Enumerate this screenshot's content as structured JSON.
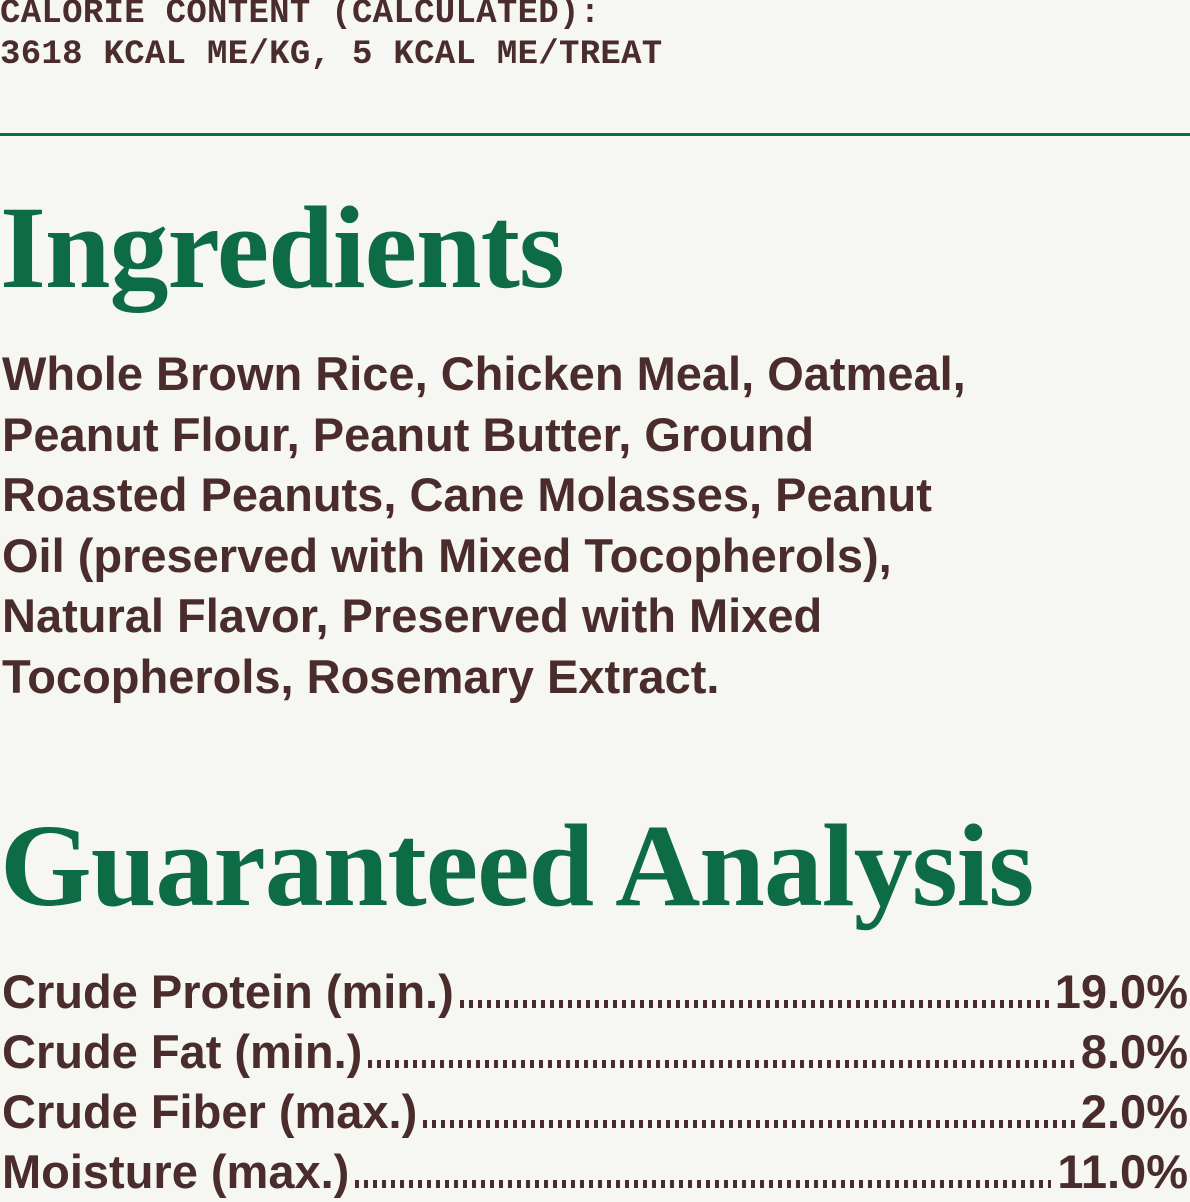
{
  "calorie": {
    "line1": "CALORIE CONTENT (CALCULATED):",
    "line2": "3618 KCAL ME/KG, 5 KCAL ME/TREAT"
  },
  "ingredients": {
    "title": "Ingredients",
    "lines": [
      "Whole Brown Rice, Chicken Meal, Oatmeal,",
      "Peanut Flour, Peanut Butter, Ground",
      "Roasted Peanuts, Cane Molasses, Peanut",
      "Oil (preserved with Mixed Tocopherols),",
      "Natural Flavor, Preserved with Mixed",
      "Tocopherols, Rosemary Extract."
    ]
  },
  "analysis": {
    "title": "Guaranteed Analysis",
    "rows": [
      {
        "label": "Crude Protein (min.)",
        "value": "19.0%"
      },
      {
        "label": "Crude Fat (min.)",
        "value": "8.0%"
      },
      {
        "label": "Crude Fiber (max.)",
        "value": "2.0%"
      },
      {
        "label": "Moisture (max.)",
        "value": "11.0%"
      }
    ]
  },
  "colors": {
    "heading": "#0d6b45",
    "text": "#4a2c2d",
    "background": "#f6f6f2"
  }
}
